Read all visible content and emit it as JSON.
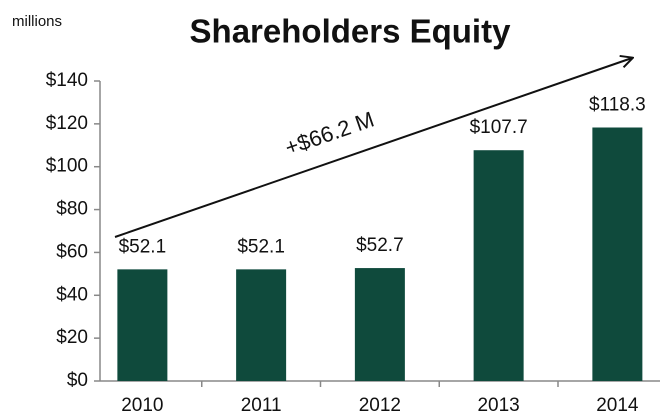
{
  "chart_data": {
    "type": "bar",
    "title": "Shareholders Equity",
    "unit_label": "millions",
    "annotation": "+$66.2 M",
    "categories": [
      "2010",
      "2011",
      "2012",
      "2013",
      "2014"
    ],
    "values": [
      52.1,
      52.1,
      52.7,
      107.7,
      118.3
    ],
    "value_labels": [
      "$52.1",
      "$52.1",
      "$52.7",
      "$107.7",
      "$118.3"
    ],
    "color": "#0f4a3c",
    "ylim": [
      0,
      140
    ],
    "yticks": [
      {
        "value": 0,
        "label": "$0"
      },
      {
        "value": 20,
        "label": "$20"
      },
      {
        "value": 40,
        "label": "$40"
      },
      {
        "value": 60,
        "label": "$60"
      },
      {
        "value": 80,
        "label": "$80"
      },
      {
        "value": 100,
        "label": "$100"
      },
      {
        "value": 120,
        "label": "$120"
      },
      {
        "value": 140,
        "label": "$140"
      }
    ],
    "grid": false
  }
}
